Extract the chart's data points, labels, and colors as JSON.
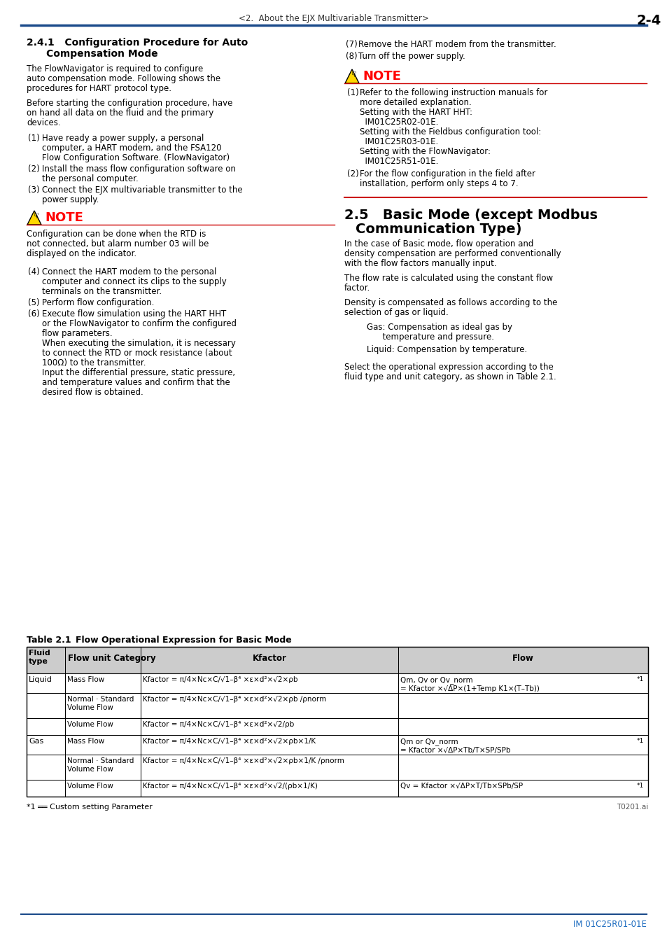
{
  "page_header_center": "<2.  About the EJX Multivariable Transmitter>",
  "page_header_right": "2-4",
  "header_line_color": "#1a4a8a",
  "table_footnote": "*1 ══ Custom setting Parameter",
  "table_ref": "T0201.ai",
  "footer_line_color": "#1a4a8a",
  "footer_text": "IM 01C25R01-01E",
  "footer_text_color": "#1a6abf",
  "bg_color": "#ffffff",
  "text_color": "#000000",
  "note_color": "#ff0000",
  "blue_color": "#1a4a8a"
}
